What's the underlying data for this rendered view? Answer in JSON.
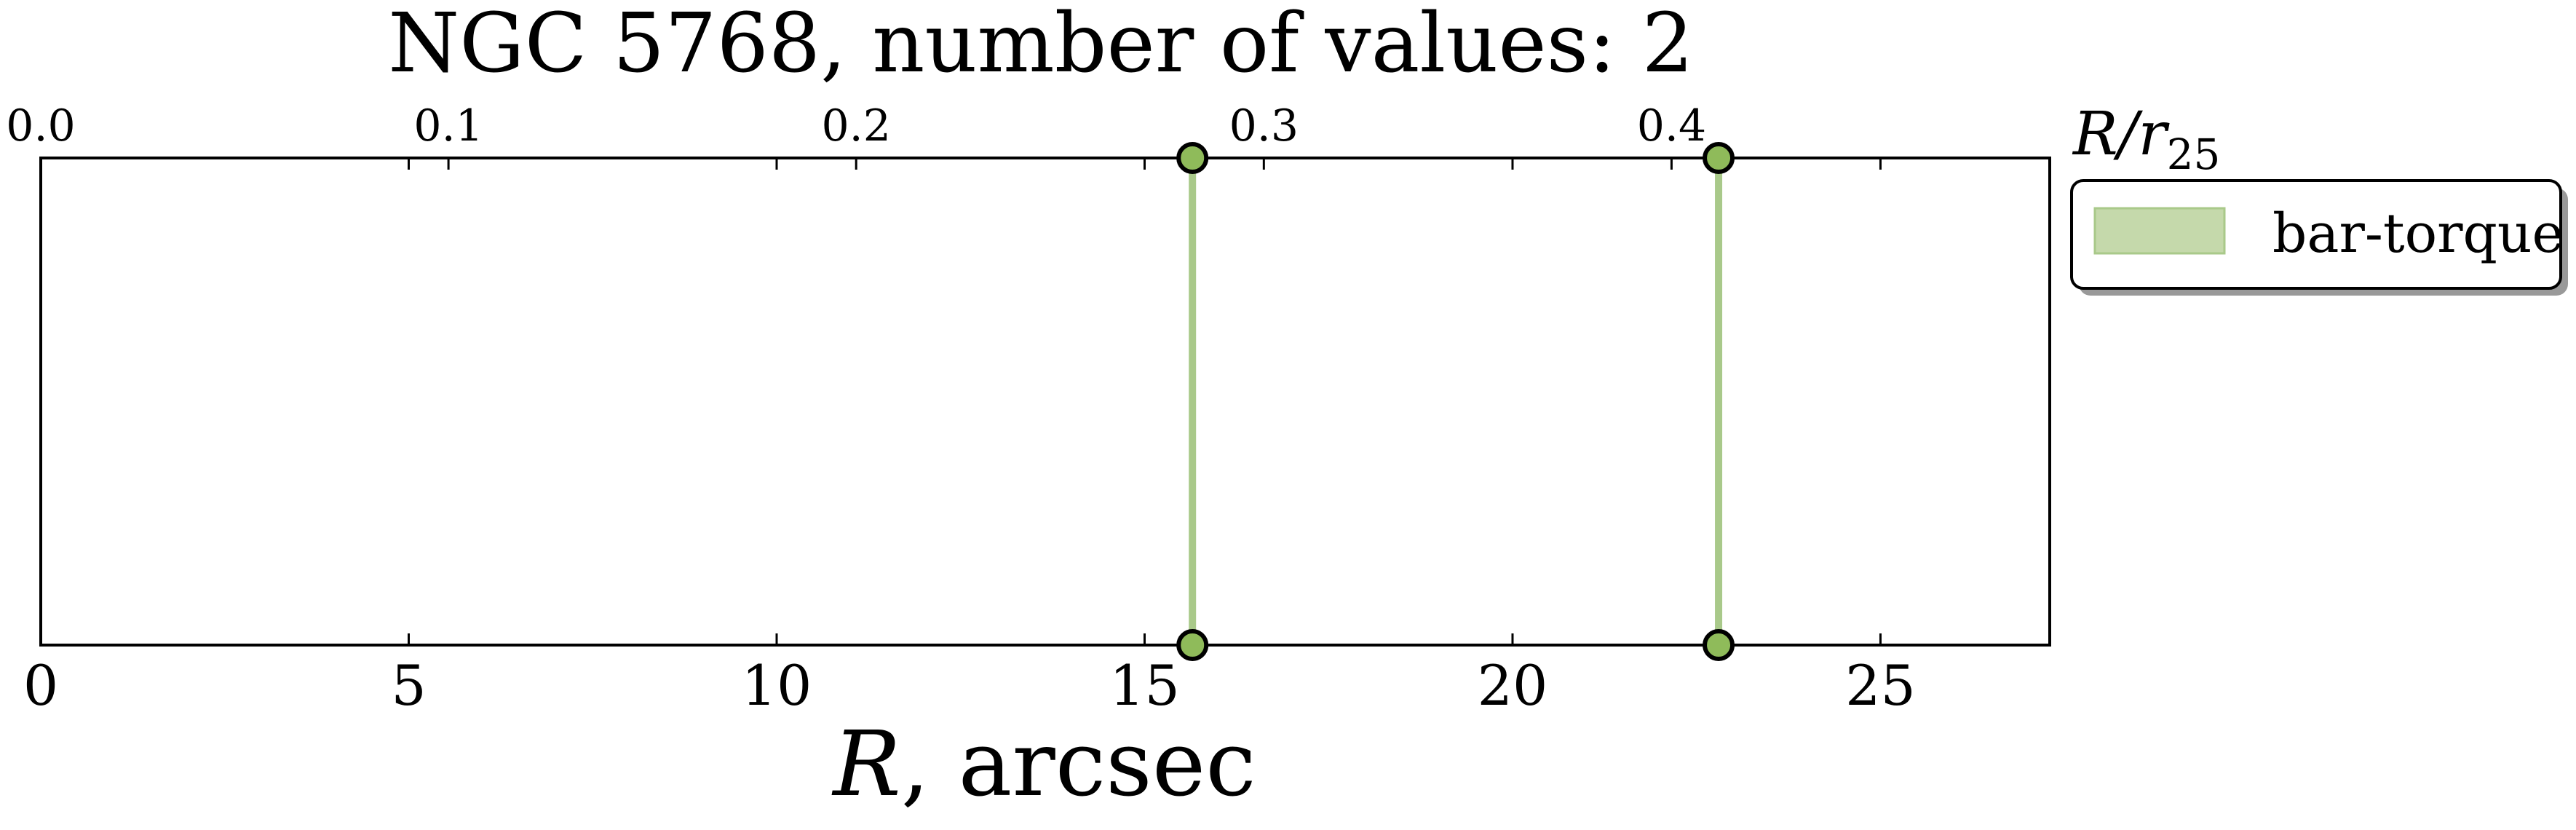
{
  "chart_data": {
    "type": "scatter",
    "title": "NGC 5768, number of values: 2",
    "xlabel_italic": "R",
    "xlabel_rest": ", arcsec",
    "top_axis_label": {
      "main": "R/r",
      "sub": "25"
    },
    "xlim": [
      0,
      27.3
    ],
    "x_ticks": [
      0,
      5,
      10,
      15,
      20,
      25
    ],
    "x_tick_labels": [
      "0",
      "5",
      "10",
      "15",
      "20",
      "25"
    ],
    "top_axis": {
      "factor": 0.01805,
      "ticks": [
        0.0,
        0.1,
        0.2,
        0.3,
        0.4
      ],
      "tick_labels": [
        "0.0",
        "0.1",
        "0.2",
        "0.3",
        "0.4"
      ]
    },
    "series": [
      {
        "name": "bar-torque",
        "color": "#a9c98a",
        "marker_color": "#8fbb5a",
        "x": [
          15.65,
          22.8
        ]
      }
    ],
    "legend": {
      "position": "right-outside-top",
      "entries": [
        "bar-torque"
      ]
    }
  }
}
